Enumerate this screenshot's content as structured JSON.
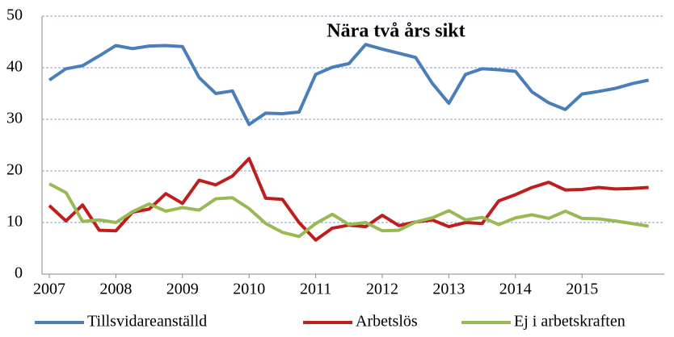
{
  "chart_data": {
    "type": "line",
    "title": "Nära två års sikt",
    "categories": [
      "2007",
      null,
      null,
      null,
      "2008",
      null,
      null,
      null,
      "2009",
      null,
      null,
      null,
      "2010",
      null,
      null,
      null,
      "2011",
      null,
      null,
      null,
      "2012",
      null,
      null,
      null,
      "2013",
      null,
      null,
      null,
      "2014",
      null,
      null,
      null,
      "2015",
      null,
      null,
      null,
      null
    ],
    "series": [
      {
        "name": "Tillsvidareanställd",
        "color": "#4a7ebb",
        "values": [
          37.6,
          39.8,
          40.4,
          42.3,
          44.3,
          43.7,
          44.2,
          44.3,
          44.1,
          38.1,
          35.0,
          35.5,
          29.0,
          31.2,
          31.1,
          31.4,
          38.7,
          40.1,
          40.8,
          44.5,
          43.6,
          42.8,
          42.0,
          37.0,
          33.1,
          38.7,
          39.8,
          39.6,
          39.3,
          35.3,
          33.2,
          31.9,
          34.9,
          35.4,
          36.0,
          36.9,
          37.6
        ]
      },
      {
        "name": "Arbetslös",
        "color": "#be1e1e",
        "values": [
          13.3,
          10.3,
          13.4,
          8.5,
          8.4,
          12.0,
          12.6,
          15.6,
          13.7,
          18.2,
          17.3,
          19.0,
          22.4,
          14.7,
          14.5,
          10.0,
          6.6,
          8.9,
          9.5,
          9.2,
          11.4,
          9.4,
          10.1,
          10.5,
          9.2,
          10.0,
          9.8,
          14.2,
          15.4,
          16.8,
          17.8,
          16.3,
          16.4,
          16.8,
          16.5,
          16.6,
          16.8
        ]
      },
      {
        "name": "Ej i arbetskraften",
        "color": "#98b954",
        "values": [
          17.5,
          15.8,
          10.2,
          10.5,
          10.0,
          12.1,
          13.6,
          12.2,
          12.9,
          12.4,
          14.6,
          14.8,
          12.7,
          9.8,
          8.1,
          7.3,
          9.8,
          11.6,
          9.6,
          10.0,
          8.4,
          8.5,
          10.1,
          10.9,
          12.3,
          10.5,
          11.0,
          9.6,
          10.9,
          11.5,
          10.8,
          12.2,
          10.8,
          10.7,
          10.3,
          9.8,
          9.3
        ]
      }
    ],
    "ylim": [
      0,
      50
    ],
    "yticks": [
      0,
      10,
      20,
      30,
      40,
      50
    ],
    "grid": true,
    "legend": "bottom"
  }
}
